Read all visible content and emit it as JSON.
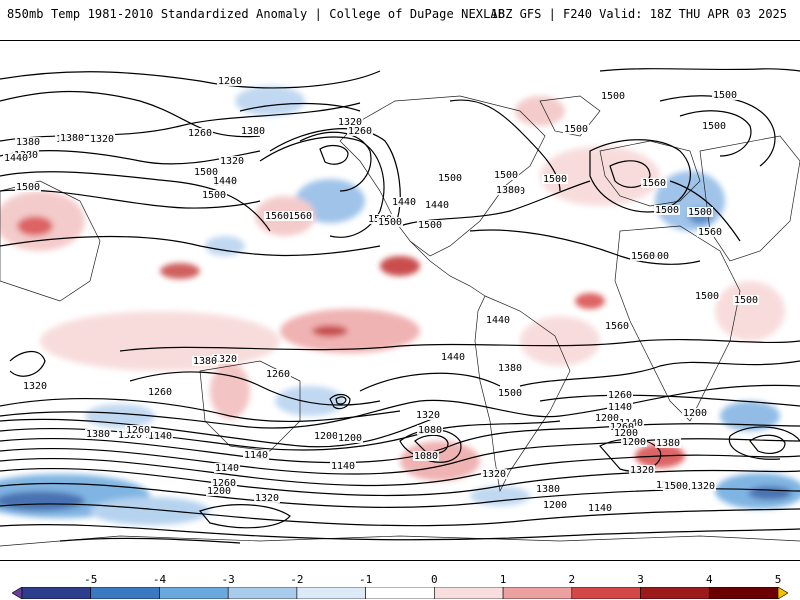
{
  "header": {
    "left_title": "850mb Temp 1981-2010 Standardized Anomaly | College of DuPage NEXLAB",
    "right_title": "18Z GFS | F240 Valid: 18Z THU APR 03 2025"
  },
  "colorbar": {
    "labels": [
      "-5",
      "-4",
      "-3",
      "-2",
      "-1",
      "0",
      "1",
      "2",
      "3",
      "4",
      "5"
    ],
    "colors": [
      "#6a3d9a",
      "#2c3e8c",
      "#3a78c2",
      "#6aa8de",
      "#a9cbec",
      "#dceaf7",
      "#ffffff",
      "#f8dede",
      "#eda0a0",
      "#d44848",
      "#9c1a1a",
      "#6b0000",
      "#f2c200"
    ]
  },
  "map": {
    "contour_labels": [
      {
        "text": "1260"
      },
      {
        "text": "1380"
      },
      {
        "text": "1320"
      },
      {
        "text": "1260"
      },
      {
        "text": "1380"
      },
      {
        "text": "1320"
      },
      {
        "text": "1260"
      },
      {
        "text": "1380"
      },
      {
        "text": "1320"
      },
      {
        "text": "1500"
      },
      {
        "text": "1380"
      },
      {
        "text": "1320"
      },
      {
        "text": "1440"
      },
      {
        "text": "1380"
      },
      {
        "text": "1440"
      },
      {
        "text": "1440"
      },
      {
        "text": "1500"
      },
      {
        "text": "1560"
      },
      {
        "text": "1500"
      },
      {
        "text": "1500"
      },
      {
        "text": "1500"
      },
      {
        "text": "1560"
      },
      {
        "text": "1440"
      },
      {
        "text": "1500"
      },
      {
        "text": "1500"
      },
      {
        "text": "1440"
      },
      {
        "text": "1500"
      },
      {
        "text": "1380"
      },
      {
        "text": "1500"
      },
      {
        "text": "1500"
      },
      {
        "text": "1500"
      },
      {
        "text": "1500"
      },
      {
        "text": "1500"
      },
      {
        "text": "1500"
      },
      {
        "text": "1500"
      },
      {
        "text": "1500"
      },
      {
        "text": "1560"
      },
      {
        "text": "1500"
      },
      {
        "text": "1560"
      },
      {
        "text": "1560"
      },
      {
        "text": "1500"
      },
      {
        "text": "1560"
      },
      {
        "text": "1500"
      },
      {
        "text": "1440"
      },
      {
        "text": "1380"
      },
      {
        "text": "1440"
      },
      {
        "text": "1260"
      },
      {
        "text": "1320"
      },
      {
        "text": "1260"
      },
      {
        "text": "1500"
      },
      {
        "text": "1320"
      },
      {
        "text": "1380"
      },
      {
        "text": "1260"
      },
      {
        "text": "1140"
      },
      {
        "text": "1200"
      },
      {
        "text": "1140"
      },
      {
        "text": "1260"
      },
      {
        "text": "1200"
      },
      {
        "text": "1380"
      },
      {
        "text": "1200"
      },
      {
        "text": "1200"
      },
      {
        "text": "1080"
      },
      {
        "text": "1320"
      },
      {
        "text": "1200"
      },
      {
        "text": "1320"
      },
      {
        "text": "1380"
      },
      {
        "text": "1200"
      },
      {
        "text": "1140"
      },
      {
        "text": "1140"
      },
      {
        "text": "1260"
      },
      {
        "text": "1200"
      },
      {
        "text": "1080"
      },
      {
        "text": "1140"
      },
      {
        "text": "1140"
      },
      {
        "text": "1260"
      },
      {
        "text": "1200"
      },
      {
        "text": "1320"
      },
      {
        "text": "1320"
      },
      {
        "text": "1380"
      },
      {
        "text": "1200"
      },
      {
        "text": "1140"
      },
      {
        "text": "1320"
      },
      {
        "text": "1260"
      },
      {
        "text": "1500"
      },
      {
        "text": "1320"
      }
    ]
  }
}
